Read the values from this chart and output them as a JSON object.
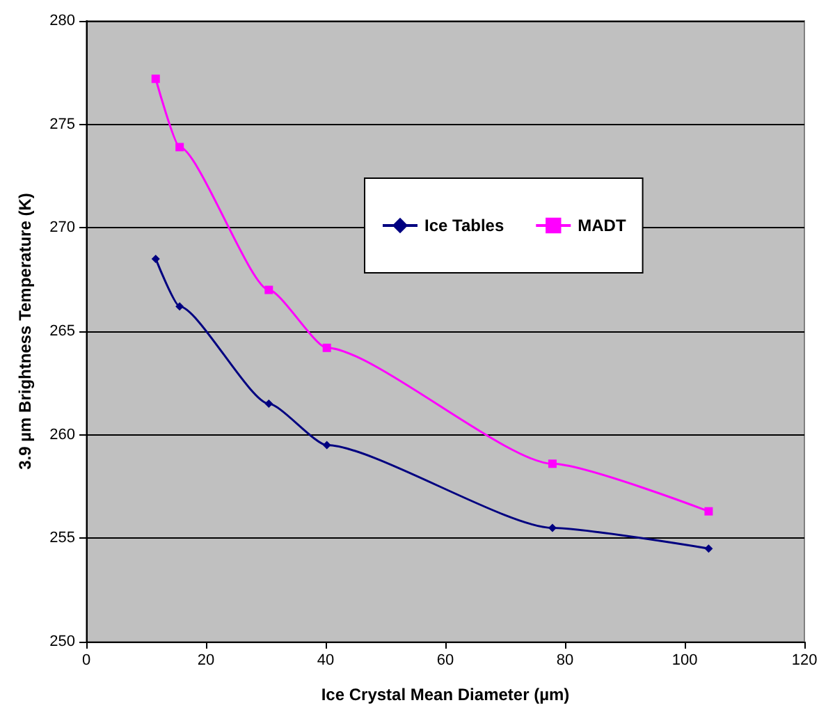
{
  "chart_data": {
    "type": "line",
    "xlabel": "Ice Crystal Mean Diameter (µm)",
    "ylabel": "3.9 µm Brightness Temperature (K)",
    "xlim": [
      0,
      120
    ],
    "xticks": [
      0,
      20,
      40,
      60,
      80,
      100,
      120
    ],
    "ylim": [
      250,
      280
    ],
    "yticks": [
      250,
      255,
      260,
      265,
      270,
      275,
      280
    ],
    "grid": "y",
    "legend": "top",
    "series": [
      {
        "name": "Ice Tables",
        "color": "#000080",
        "marker": "diamond",
        "x": [
          11.6,
          15.6,
          30.5,
          40.2,
          77.9,
          104
        ],
        "values": [
          268.5,
          266.2,
          261.5,
          259.5,
          255.5,
          254.5
        ]
      },
      {
        "name": "MADT",
        "color": "#ff00ff",
        "marker": "square",
        "x": [
          11.6,
          15.6,
          30.5,
          40.2,
          77.9,
          104
        ],
        "values": [
          277.2,
          273.9,
          267,
          264.2,
          258.6,
          256.3
        ]
      }
    ]
  }
}
